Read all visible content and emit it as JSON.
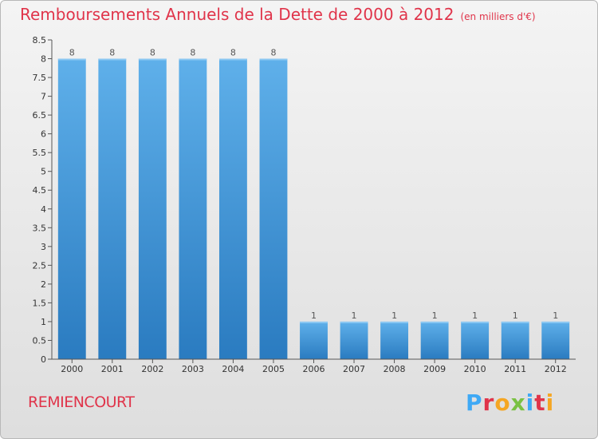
{
  "header": {
    "title": "Remboursements Annuels de la Dette de 2000 à 2012",
    "subtitle": "(en milliers d'€)"
  },
  "footer": {
    "town": "REMIENCOURT",
    "logo_letters": [
      "P",
      "r",
      "o",
      "x",
      "i",
      "t",
      "i"
    ],
    "logo_colors": [
      "#3fa9f5",
      "#e0344a",
      "#f5a623",
      "#7ac142",
      "#3fa9f5",
      "#e0344a",
      "#f5a623"
    ]
  },
  "chart_data": {
    "type": "bar",
    "title": "Remboursements Annuels de la Dette de 2000 à 2012",
    "xlabel": "",
    "ylabel": "",
    "categories": [
      "2000",
      "2001",
      "2002",
      "2003",
      "2004",
      "2005",
      "2006",
      "2007",
      "2008",
      "2009",
      "2010",
      "2011",
      "2012"
    ],
    "values": [
      8,
      8,
      8,
      8,
      8,
      8,
      1,
      1,
      1,
      1,
      1,
      1,
      1
    ],
    "value_labels": [
      "8",
      "8",
      "8",
      "8",
      "8",
      "8",
      "1",
      "1",
      "1",
      "1",
      "1",
      "1",
      "1"
    ],
    "ylim": [
      0,
      8.5
    ],
    "yticks": [
      "0",
      "0.5",
      "1",
      "1.5",
      "2",
      "2.5",
      "3",
      "3.5",
      "4",
      "4.5",
      "5",
      "5.5",
      "6",
      "6.5",
      "7",
      "7.5",
      "8",
      "8.5"
    ],
    "grid": false,
    "bar_color": "#3a8fd6"
  }
}
